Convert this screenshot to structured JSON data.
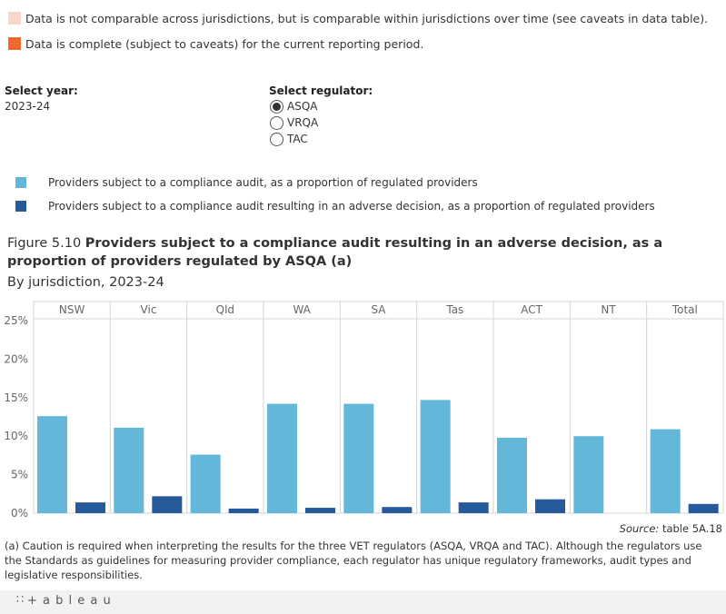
{
  "top_legend": [
    {
      "text": "Data is not comparable across jurisdictions, but is comparable within jurisdictions over time (see caveats in data table).",
      "color": "#fbd7c9"
    },
    {
      "text": "Data is complete (subject to caveats) for the current reporting period.",
      "color": "#f26630"
    }
  ],
  "year_filter": {
    "label": "Select year:",
    "value": "2023-24"
  },
  "regulator_filter": {
    "label": "Select regulator:",
    "options": [
      {
        "label": "ASQA",
        "checked": true
      },
      {
        "label": "VRQA",
        "checked": false
      },
      {
        "label": "TAC",
        "checked": false
      }
    ]
  },
  "series_legend": [
    {
      "text": "Providers subject to a compliance audit, as a proportion of regulated providers",
      "color": "#63b8da"
    },
    {
      "text": "Providers subject to a compliance audit resulting in an adverse decision, as a proportion of regulated providers",
      "color": "#265a9b"
    }
  ],
  "figure": {
    "number": "Figure 5.10",
    "title": "Providers subject to a compliance audit resulting in an adverse decision, as a proportion of providers regulated by ASQA (a)",
    "subtitle": "By jurisdiction, 2023-24"
  },
  "chart_data": {
    "type": "bar",
    "categories": [
      "NSW",
      "Vic",
      "Qld",
      "WA",
      "SA",
      "Tas",
      "ACT",
      "NT",
      "Total"
    ],
    "series": [
      {
        "name": "Providers subject to a compliance audit, as a proportion of regulated providers",
        "color": "#63b8da",
        "values": [
          12.6,
          11.1,
          7.6,
          14.2,
          14.2,
          14.7,
          9.8,
          10.0,
          10.9
        ]
      },
      {
        "name": "Providers subject to a compliance audit resulting in an adverse decision, as a proportion of regulated providers",
        "color": "#265a9b",
        "values": [
          1.4,
          2.2,
          0.6,
          0.7,
          0.8,
          1.4,
          1.8,
          null,
          1.2
        ]
      }
    ],
    "ylim": [
      0,
      25
    ],
    "yticks": [
      0,
      5,
      10,
      15,
      20,
      25
    ],
    "ytick_labels": [
      "0%",
      "5%",
      "10%",
      "15%",
      "20%",
      "25%"
    ],
    "grid": false
  },
  "source": {
    "prefix": "Source:",
    "text": "table 5A.18"
  },
  "footnote": "(a) Caution is required when interpreting the results for the three VET regulators (ASQA, VRQA and TAC). Although the regulators use the Standards as guidelines for measuring provider compliance, each regulator has unique regulatory frameworks, audit types and legislative responsibilities.",
  "footer": {
    "brand": "+ a b l e a u"
  }
}
